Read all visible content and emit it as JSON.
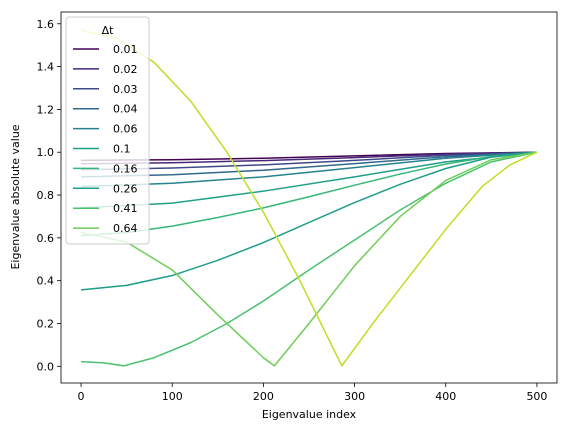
{
  "chart_data": {
    "type": "line",
    "title": "",
    "xlabel": "Eigenvalue index",
    "ylabel": "Eigenvalue absolute value",
    "xlim": [
      -22,
      522
    ],
    "ylim": [
      -0.078,
      1.655
    ],
    "xticks": [
      0,
      100,
      200,
      300,
      400,
      500
    ],
    "yticks": [
      0.0,
      0.2,
      0.4,
      0.6,
      0.8,
      1.0,
      1.2,
      1.4,
      1.6
    ],
    "grid": false,
    "legend": {
      "title": "Δt",
      "placement": "upper-left"
    },
    "series": [
      {
        "name": "0.01",
        "color": "#440154",
        "x": [
          0,
          100,
          200,
          300,
          400,
          500
        ],
        "y": [
          0.962,
          0.965,
          0.972,
          0.983,
          0.994,
          1.0
        ]
      },
      {
        "name": "0.02",
        "color": "#482878",
        "x": [
          0,
          100,
          200,
          300,
          400,
          500
        ],
        "y": [
          0.946,
          0.951,
          0.961,
          0.975,
          0.991,
          1.0
        ]
      },
      {
        "name": "0.03",
        "color": "#3e4989",
        "x": [
          0,
          100,
          200,
          300,
          400,
          500
        ],
        "y": [
          0.918,
          0.926,
          0.941,
          0.962,
          0.986,
          1.0
        ]
      },
      {
        "name": "0.04",
        "color": "#31688e",
        "x": [
          0,
          100,
          200,
          300,
          400,
          500
        ],
        "y": [
          0.885,
          0.895,
          0.916,
          0.947,
          0.979,
          1.0
        ]
      },
      {
        "name": "0.06",
        "color": "#26828e",
        "x": [
          0,
          100,
          200,
          300,
          400,
          500
        ],
        "y": [
          0.84,
          0.855,
          0.885,
          0.928,
          0.972,
          1.0
        ]
      },
      {
        "name": "0.1",
        "color": "#1f9e89",
        "x": [
          0,
          100,
          200,
          300,
          400,
          500
        ],
        "y": [
          0.74,
          0.762,
          0.818,
          0.885,
          0.955,
          1.0
        ]
      },
      {
        "name": "0.16",
        "color": "#35b779",
        "x": [
          0,
          50,
          100,
          150,
          200,
          250,
          300,
          350,
          400,
          450,
          500
        ],
        "y": [
          0.61,
          0.625,
          0.655,
          0.695,
          0.74,
          0.792,
          0.846,
          0.898,
          0.945,
          0.98,
          1.0
        ]
      },
      {
        "name": "0.26",
        "color": "#1f9e89",
        "x": [
          0,
          50,
          100,
          150,
          200,
          250,
          300,
          350,
          400,
          450,
          500
        ],
        "y": [
          0.357,
          0.378,
          0.424,
          0.495,
          0.578,
          0.672,
          0.765,
          0.85,
          0.924,
          0.977,
          1.0
        ]
      },
      {
        "name": "0.41",
        "color": "#4ac16d",
        "x": [
          0,
          25,
          47,
          80,
          120,
          160,
          200,
          250,
          300,
          350,
          400,
          450,
          500
        ],
        "y": [
          0.022,
          0.016,
          0.002,
          0.04,
          0.11,
          0.2,
          0.305,
          0.45,
          0.59,
          0.73,
          0.855,
          0.955,
          1.0
        ]
      },
      {
        "name": "0.64",
        "color": "#6ece58",
        "x": [
          0,
          50,
          100,
          150,
          200,
          212,
          250,
          300,
          350,
          400,
          450,
          500
        ],
        "y": [
          0.625,
          0.58,
          0.45,
          0.24,
          0.04,
          0.002,
          0.2,
          0.47,
          0.7,
          0.868,
          0.965,
          1.0
        ]
      },
      {
        "name": "",
        "color": "#bddf26",
        "x": [
          0,
          40,
          80,
          120,
          160,
          200,
          240,
          286,
          320,
          360,
          400,
          440,
          470,
          500
        ],
        "y": [
          1.57,
          1.53,
          1.42,
          1.24,
          1.0,
          0.72,
          0.4,
          0.002,
          0.2,
          0.42,
          0.64,
          0.84,
          0.94,
          1.0
        ]
      }
    ]
  }
}
